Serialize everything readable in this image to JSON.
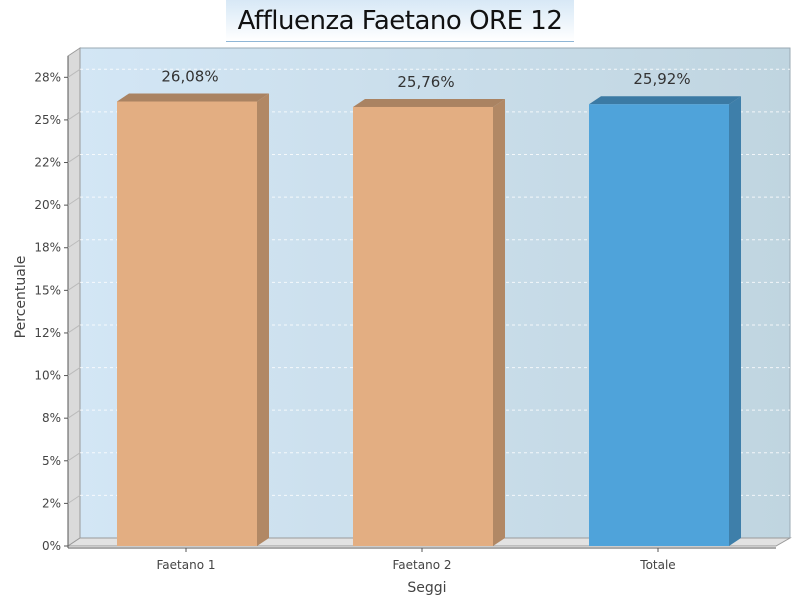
{
  "chart_data": {
    "type": "bar",
    "title": "Affluenza Faetano ORE 12",
    "xlabel": "Seggi",
    "ylabel": "Percentuale",
    "categories": [
      "Faetano 1",
      "Faetano 2",
      "Totale"
    ],
    "values": [
      26.08,
      25.76,
      25.92
    ],
    "data_labels": [
      "26,08%",
      "25,76%",
      "25,92%"
    ],
    "bar_colors": [
      "#e3ae82",
      "#e3ae82",
      "#4fa3da"
    ],
    "ylim": [
      0,
      28.75
    ],
    "yticks": [
      {
        "value": 0,
        "label": "0%"
      },
      {
        "value": 2.5,
        "label": "2%"
      },
      {
        "value": 5,
        "label": "5%"
      },
      {
        "value": 7.5,
        "label": "8%"
      },
      {
        "value": 10,
        "label": "10%"
      },
      {
        "value": 12.5,
        "label": "12%"
      },
      {
        "value": 15,
        "label": "15%"
      },
      {
        "value": 17.5,
        "label": "18%"
      },
      {
        "value": 20,
        "label": "20%"
      },
      {
        "value": 22.5,
        "label": "22%"
      },
      {
        "value": 25,
        "label": "25%"
      },
      {
        "value": 27.5,
        "label": "28%"
      }
    ],
    "grid": true,
    "style": "3d-bar"
  }
}
